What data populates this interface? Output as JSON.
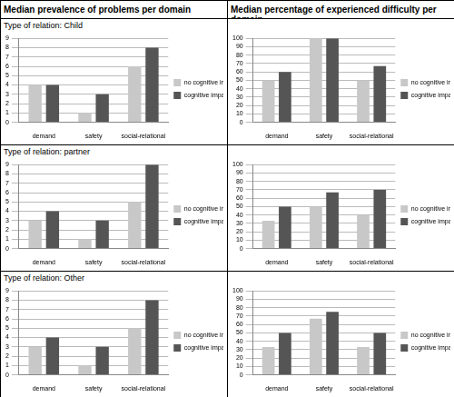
{
  "headers": [
    "Median prevalence of problems per domain",
    "Median percentage of experienced difficulty per domain"
  ],
  "row_labels": [
    "Type of relation: Child",
    "Type of relation: partner",
    "Type of relation: Other"
  ],
  "chart_data": [
    {
      "type": "bar",
      "categories": [
        "demand",
        "safety",
        "social-relational"
      ],
      "series": [
        {
          "name": "no cognitive impairment",
          "color": "#c8c8c8",
          "values": [
            4,
            1,
            6
          ]
        },
        {
          "name": "cognitive impairment",
          "color": "#555555",
          "values": [
            4,
            3,
            8
          ]
        }
      ],
      "ylim": [
        0,
        9
      ],
      "yticks": [
        0,
        1,
        2,
        3,
        4,
        5,
        6,
        7,
        8,
        9
      ],
      "grid": true,
      "legend": "right"
    },
    {
      "type": "bar",
      "categories": [
        "demand",
        "safety",
        "social-relational"
      ],
      "series": [
        {
          "name": "no cognitive impairment",
          "color": "#c8c8c8",
          "values": [
            50,
            100,
            50
          ]
        },
        {
          "name": "cognitive impairment",
          "color": "#555555",
          "values": [
            60,
            100,
            67
          ]
        }
      ],
      "ylim": [
        0,
        100
      ],
      "yticks": [
        0,
        10,
        20,
        30,
        40,
        50,
        60,
        70,
        80,
        90,
        100
      ],
      "grid": true,
      "legend": "right"
    },
    {
      "type": "bar",
      "categories": [
        "demand",
        "safety",
        "social-relational"
      ],
      "series": [
        {
          "name": "no cognitive impairment",
          "color": "#c8c8c8",
          "values": [
            3,
            1,
            5
          ]
        },
        {
          "name": "cognitive impairment",
          "color": "#555555",
          "values": [
            4,
            3,
            9
          ]
        }
      ],
      "ylim": [
        0,
        9
      ],
      "yticks": [
        0,
        1,
        2,
        3,
        4,
        5,
        6,
        7,
        8,
        9
      ],
      "grid": true,
      "legend": "right"
    },
    {
      "type": "bar",
      "categories": [
        "demand",
        "safety",
        "social-relational"
      ],
      "series": [
        {
          "name": "no cognitive impairment",
          "color": "#c8c8c8",
          "values": [
            33,
            50,
            40
          ]
        },
        {
          "name": "cognitive impairment",
          "color": "#555555",
          "values": [
            50,
            67,
            70
          ]
        }
      ],
      "ylim": [
        0,
        100
      ],
      "yticks": [
        0,
        10,
        20,
        30,
        40,
        50,
        60,
        70,
        80,
        90,
        100
      ],
      "grid": true,
      "legend": "right"
    },
    {
      "type": "bar",
      "categories": [
        "demand",
        "safety",
        "social-relational"
      ],
      "series": [
        {
          "name": "no cognitive impairment",
          "color": "#c8c8c8",
          "values": [
            3,
            1,
            5
          ]
        },
        {
          "name": "cognitive impairment",
          "color": "#555555",
          "values": [
            4,
            3,
            8
          ]
        }
      ],
      "ylim": [
        0,
        9
      ],
      "yticks": [
        0,
        1,
        2,
        3,
        4,
        5,
        6,
        7,
        8,
        9
      ],
      "grid": true,
      "legend": "right"
    },
    {
      "type": "bar",
      "categories": [
        "demand",
        "safety",
        "social-relational"
      ],
      "series": [
        {
          "name": "no cognitive impairment",
          "color": "#c8c8c8",
          "values": [
            33,
            67,
            33
          ]
        },
        {
          "name": "cognitive impairment",
          "color": "#555555",
          "values": [
            50,
            75,
            50
          ]
        }
      ],
      "ylim": [
        0,
        100
      ],
      "yticks": [
        0,
        10,
        20,
        30,
        40,
        50,
        60,
        70,
        80,
        90,
        100
      ],
      "grid": true,
      "legend": "right"
    }
  ]
}
